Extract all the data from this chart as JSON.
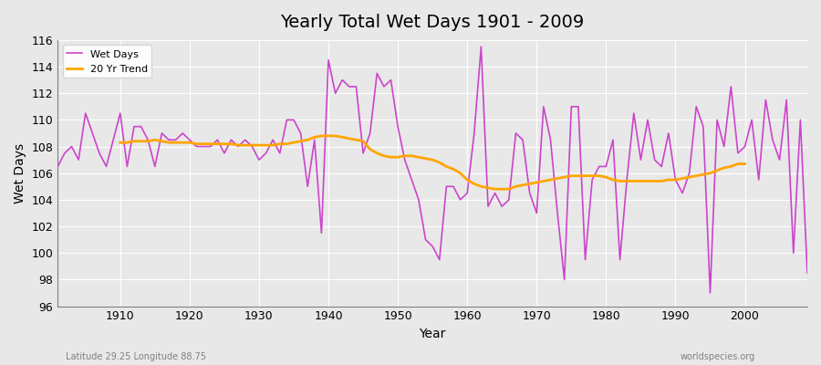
{
  "title": "Yearly Total Wet Days 1901 - 2009",
  "xlabel": "Year",
  "ylabel": "Wet Days",
  "subtitle_left": "Latitude 29.25 Longitude 88.75",
  "subtitle_right": "worldspecies.org",
  "legend_wet": "Wet Days",
  "legend_trend": "20 Yr Trend",
  "wet_color": "#cc44cc",
  "trend_color": "#FFA500",
  "bg_color": "#e8e8e8",
  "ylim": [
    96,
    116
  ],
  "years": [
    1901,
    1902,
    1903,
    1904,
    1905,
    1906,
    1907,
    1908,
    1909,
    1910,
    1911,
    1912,
    1913,
    1914,
    1915,
    1916,
    1917,
    1918,
    1919,
    1920,
    1921,
    1922,
    1923,
    1924,
    1925,
    1926,
    1927,
    1928,
    1929,
    1930,
    1931,
    1932,
    1933,
    1934,
    1935,
    1936,
    1937,
    1938,
    1939,
    1940,
    1941,
    1942,
    1943,
    1944,
    1945,
    1946,
    1947,
    1948,
    1949,
    1950,
    1951,
    1952,
    1953,
    1954,
    1955,
    1956,
    1957,
    1958,
    1959,
    1960,
    1961,
    1962,
    1963,
    1964,
    1965,
    1966,
    1967,
    1968,
    1969,
    1970,
    1971,
    1972,
    1973,
    1974,
    1975,
    1976,
    1977,
    1978,
    1979,
    1980,
    1981,
    1982,
    1983,
    1984,
    1985,
    1986,
    1987,
    1988,
    1989,
    1990,
    1991,
    1992,
    1993,
    1994,
    1995,
    1996,
    1997,
    1998,
    1999,
    2000,
    2001,
    2002,
    2003,
    2004,
    2005,
    2006,
    2007,
    2008,
    2009
  ],
  "wet_days": [
    106.5,
    107.5,
    108.0,
    107.0,
    110.5,
    109.0,
    107.5,
    106.5,
    108.5,
    110.5,
    106.5,
    109.5,
    109.5,
    108.5,
    106.5,
    109.0,
    108.5,
    108.5,
    109.0,
    108.5,
    108.0,
    108.0,
    108.0,
    108.5,
    107.5,
    108.5,
    108.0,
    108.5,
    108.0,
    107.0,
    107.5,
    108.5,
    107.5,
    110.0,
    110.0,
    109.0,
    105.0,
    108.5,
    101.5,
    114.5,
    112.0,
    113.0,
    112.5,
    112.5,
    107.5,
    109.0,
    113.5,
    112.5,
    113.0,
    109.5,
    107.0,
    105.5,
    104.0,
    101.0,
    100.5,
    99.5,
    105.0,
    105.0,
    104.0,
    104.5,
    109.0,
    115.5,
    103.5,
    104.5,
    103.5,
    104.0,
    109.0,
    108.5,
    104.5,
    103.0,
    111.0,
    108.5,
    103.0,
    98.0,
    111.0,
    111.0,
    99.5,
    105.5,
    106.5,
    106.5,
    108.5,
    99.5,
    105.5,
    110.5,
    107.0,
    110.0,
    107.0,
    106.5,
    109.0,
    105.5,
    104.5,
    106.0,
    111.0,
    109.5,
    97.0,
    110.0,
    108.0,
    112.5,
    107.5,
    108.0,
    110.0,
    105.5,
    111.5,
    108.5,
    107.0,
    111.5,
    100.0,
    110.0,
    98.5
  ],
  "trend_years": [
    1910,
    1911,
    1912,
    1913,
    1914,
    1915,
    1916,
    1917,
    1918,
    1919,
    1920,
    1921,
    1922,
    1923,
    1924,
    1925,
    1926,
    1927,
    1928,
    1929,
    1930,
    1931,
    1932,
    1933,
    1934,
    1935,
    1936,
    1937,
    1938,
    1939,
    1940,
    1941,
    1942,
    1943,
    1944,
    1945,
    1946,
    1947,
    1948,
    1949,
    1950,
    1951,
    1952,
    1953,
    1954,
    1955,
    1956,
    1957,
    1958,
    1959,
    1960,
    1961,
    1962,
    1963,
    1964,
    1965,
    1966,
    1967,
    1968,
    1969,
    1970,
    1971,
    1972,
    1973,
    1974,
    1975,
    1976,
    1977,
    1978,
    1979,
    1980,
    1981,
    1982,
    1983,
    1984,
    1985,
    1986,
    1987,
    1988,
    1989,
    1990,
    1991,
    1992,
    1993,
    1994,
    1995,
    1996,
    1997,
    1998,
    1999,
    2000
  ],
  "trend_vals": [
    108.3,
    108.3,
    108.4,
    108.4,
    108.4,
    108.5,
    108.4,
    108.3,
    108.3,
    108.3,
    108.3,
    108.2,
    108.2,
    108.2,
    108.2,
    108.2,
    108.2,
    108.1,
    108.1,
    108.1,
    108.1,
    108.1,
    108.1,
    108.2,
    108.2,
    108.3,
    108.4,
    108.5,
    108.7,
    108.8,
    108.8,
    108.8,
    108.7,
    108.6,
    108.5,
    108.4,
    107.8,
    107.5,
    107.3,
    107.2,
    107.2,
    107.3,
    107.3,
    107.2,
    107.1,
    107.0,
    106.8,
    106.5,
    106.3,
    106.0,
    105.5,
    105.2,
    105.0,
    104.9,
    104.8,
    104.8,
    104.8,
    105.0,
    105.1,
    105.2,
    105.3,
    105.4,
    105.5,
    105.6,
    105.7,
    105.8,
    105.8,
    105.8,
    105.8,
    105.8,
    105.7,
    105.5,
    105.4,
    105.4,
    105.4,
    105.4,
    105.4,
    105.4,
    105.4,
    105.5,
    105.5,
    105.6,
    105.7,
    105.8,
    105.9,
    106.0,
    106.2,
    106.4,
    106.5,
    106.7,
    106.7
  ]
}
